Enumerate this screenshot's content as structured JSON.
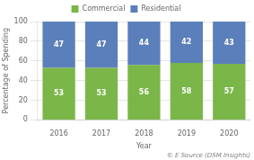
{
  "chart_data": {
    "type": "bar",
    "stacked": true,
    "categories": [
      "2016",
      "2017",
      "2018",
      "2019",
      "2020"
    ],
    "series": [
      {
        "name": "Commercial",
        "color": "#7ab648",
        "values": [
          53,
          53,
          56,
          58,
          57
        ]
      },
      {
        "name": "Residential",
        "color": "#5b7fba",
        "values": [
          47,
          47,
          44,
          42,
          43
        ]
      }
    ],
    "xlabel": "Year",
    "ylabel": "Percentage of Spending",
    "ylim": [
      0,
      100
    ],
    "yticks": [
      0,
      20,
      40,
      60,
      80,
      100
    ],
    "grid": true,
    "legend": "top",
    "data_labels": true,
    "annotations": [
      "© E Source (DSM Insights)"
    ]
  }
}
